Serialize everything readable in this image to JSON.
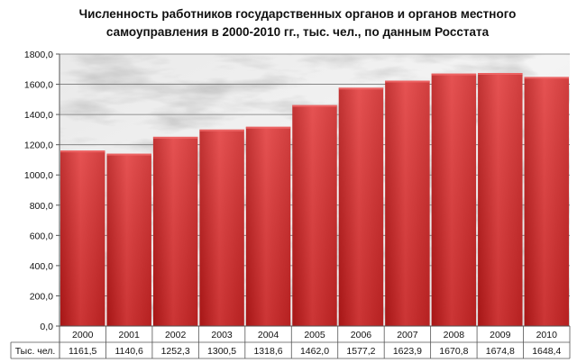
{
  "chart_data": {
    "type": "bar",
    "title_lines": [
      "Численность работников государственных органов и органов местного",
      "самоуправления в 2000-2010 гг., тыс. чел., по данным Росстата"
    ],
    "categories": [
      "2000",
      "2001",
      "2002",
      "2003",
      "2004",
      "2005",
      "2006",
      "2007",
      "2008",
      "2009",
      "2010"
    ],
    "series": [
      {
        "name": "Тыс. чел.",
        "values": [
          1161.5,
          1140.6,
          1252.3,
          1300.5,
          1318.6,
          1462.0,
          1577.2,
          1623.9,
          1670.8,
          1674.8,
          1648.4
        ],
        "value_labels": [
          "1161,5",
          "1140,6",
          "1252,3",
          "1300,5",
          "1318,6",
          "1462,0",
          "1577,2",
          "1623,9",
          "1670,8",
          "1674,8",
          "1648,4"
        ],
        "color": "#d42a2a"
      }
    ],
    "ylim": [
      0,
      1800
    ],
    "yticks": [
      0,
      200,
      400,
      600,
      800,
      1000,
      1200,
      1400,
      1600,
      1800
    ],
    "ytick_labels": [
      "0,0",
      "200,0",
      "400,0",
      "600,0",
      "800,0",
      "1000,0",
      "1200,0",
      "1400,0",
      "1600,0",
      "1800,0"
    ],
    "grid": true,
    "data_table": true,
    "background": "marble"
  }
}
